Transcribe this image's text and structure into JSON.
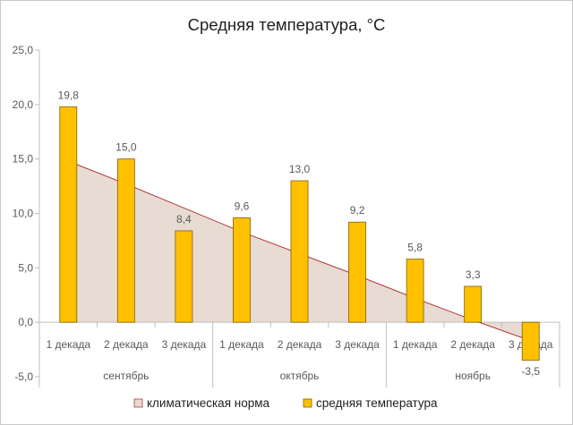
{
  "chart_data": {
    "type": "bar",
    "title": "Средняя температура, °С",
    "ylim": [
      -5,
      25
    ],
    "ytick_labels": [
      "-5,0",
      "0,0",
      "5,0",
      "10,0",
      "15,0",
      "20,0",
      "25,0"
    ],
    "grid": false,
    "legend_position": "bottom",
    "groups": [
      {
        "name": "сентябрь",
        "categories": [
          "1 декада",
          "2 декада",
          "3 декада"
        ]
      },
      {
        "name": "октябрь",
        "categories": [
          "1 декада",
          "2 декада",
          "3 декада"
        ]
      },
      {
        "name": "ноябрь",
        "categories": [
          "1 декада",
          "2 декада",
          "3 декада"
        ]
      }
    ],
    "series": [
      {
        "name": "климатическая норма",
        "type": "area",
        "color": "#e7d9d1",
        "line_color": "#b23a3a",
        "values": [
          14.8,
          12.7,
          10.5,
          8.3,
          6.3,
          4.3,
          2.2,
          0.2,
          -1.7
        ]
      },
      {
        "name": "средняя температура",
        "type": "bar",
        "color": "#ffc000",
        "values": [
          19.8,
          15.0,
          8.4,
          9.6,
          13.0,
          9.2,
          5.8,
          3.3,
          -3.5
        ],
        "labels": [
          "19,8",
          "15,0",
          "8,4",
          "9,6",
          "13,0",
          "9,2",
          "5,8",
          "3,3",
          "-3,5"
        ]
      }
    ]
  }
}
